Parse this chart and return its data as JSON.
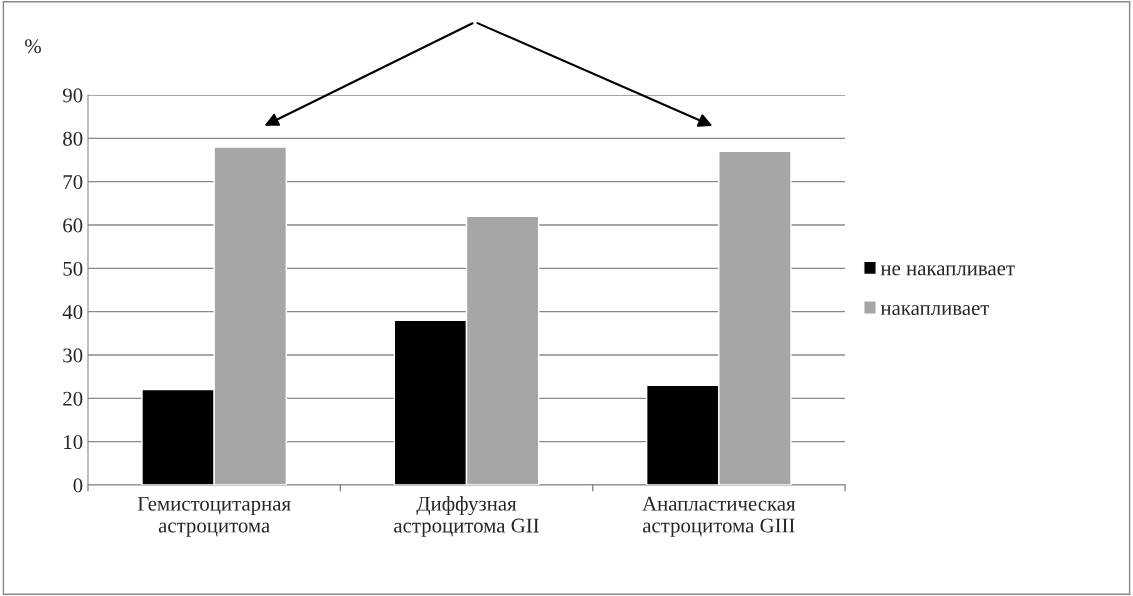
{
  "chart_data": {
    "type": "bar",
    "ylabel": "%",
    "categories": [
      "Гемистоцитарная\nастроцитома",
      "Диффузная\nастроцитома GII",
      "Анапластическая\nастроцитома GIII"
    ],
    "series": [
      {
        "name": "не накапливает",
        "color": "#000000",
        "values": [
          22,
          38,
          23
        ]
      },
      {
        "name": "накапливает",
        "color": "#a6a6a6",
        "values": [
          78,
          62,
          77
        ]
      }
    ],
    "ylim": [
      0,
      90
    ],
    "yticks": [
      0,
      10,
      20,
      30,
      40,
      50,
      60,
      70,
      80,
      90
    ],
    "grid": "y",
    "legend": "right"
  }
}
